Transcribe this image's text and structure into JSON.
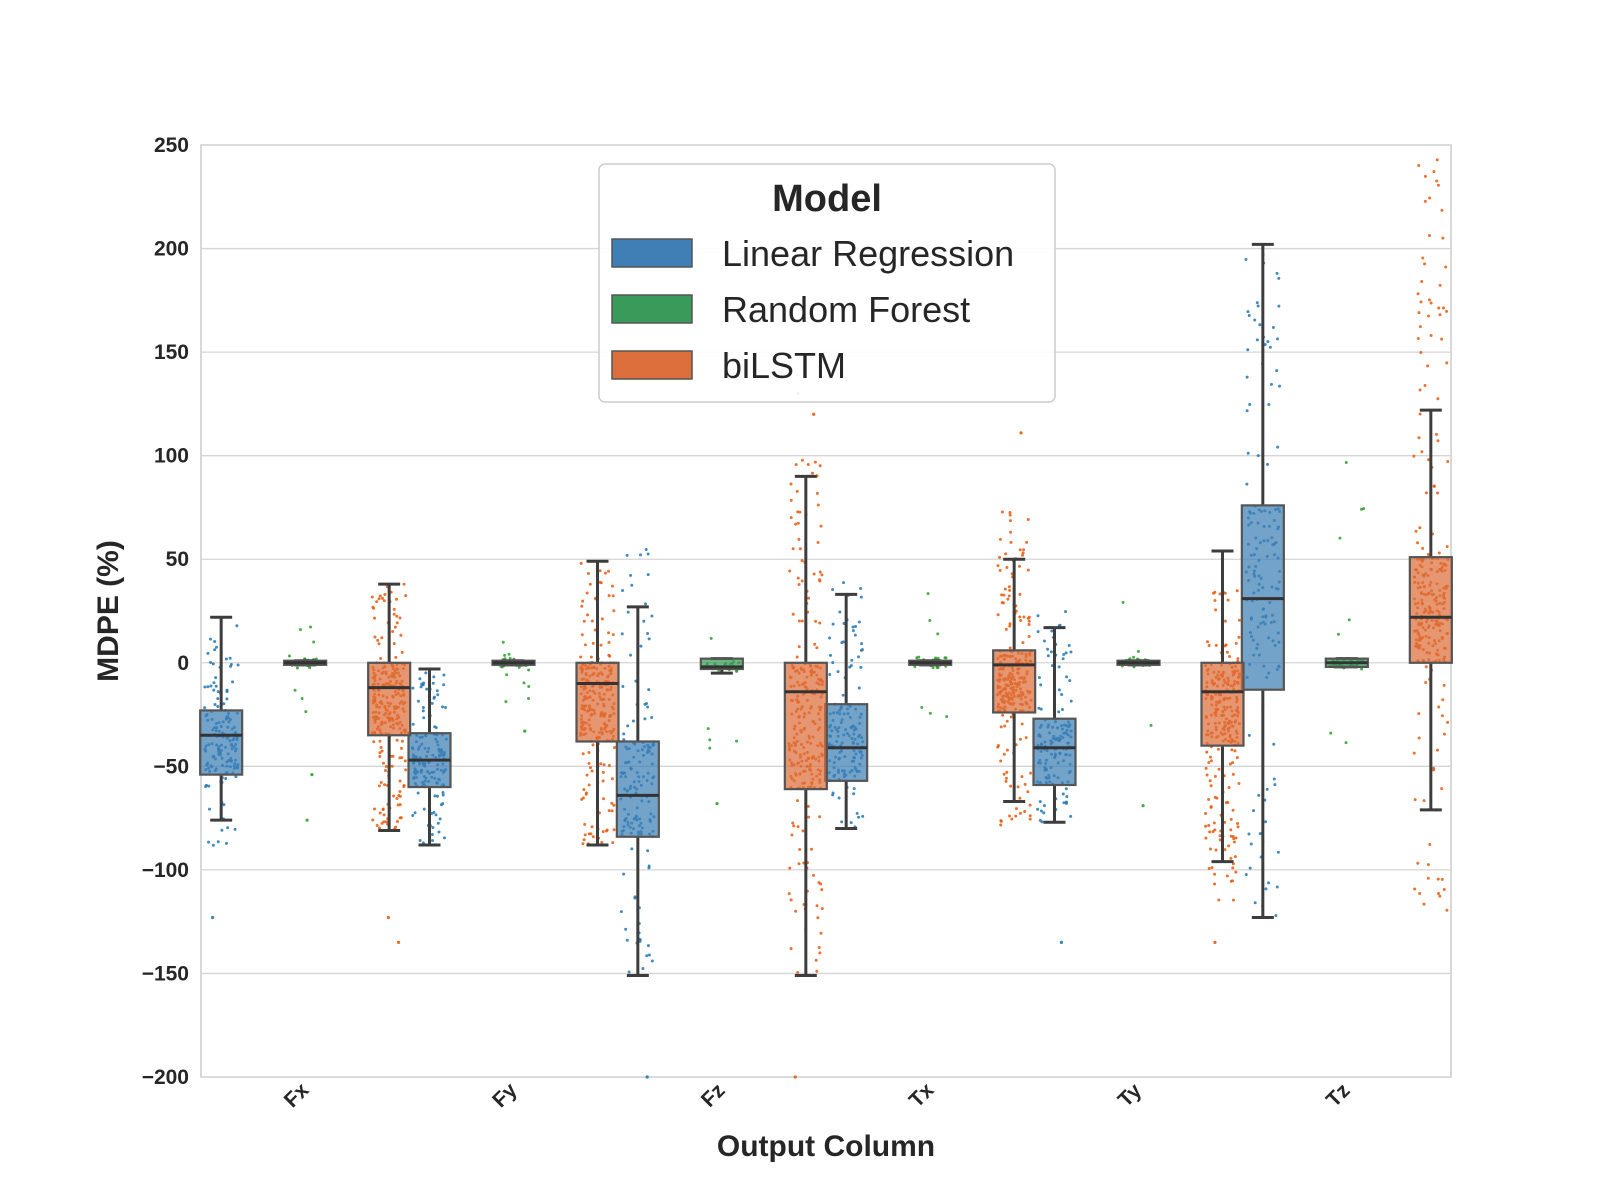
{
  "chart_data": {
    "type": "box",
    "title": "",
    "xlabel": "Output Column",
    "ylabel": "MDPE (%)",
    "ylim": [
      -200,
      250
    ],
    "yticks": [
      -200,
      -150,
      -100,
      -50,
      0,
      50,
      100,
      150,
      200,
      250
    ],
    "ytick_labels": [
      "−200",
      "−150",
      "−100",
      "−50",
      "0",
      "50",
      "100",
      "150",
      "200",
      "250"
    ],
    "categories": [
      "Fx",
      "Fy",
      "Fz",
      "Tx",
      "Ty",
      "Tz"
    ],
    "grid": true,
    "legend": {
      "title": "Model",
      "placement": "top-center"
    },
    "series": [
      {
        "name": "Linear Regression",
        "color": "#3f7fb5",
        "point_color": "#1f77b4",
        "boxes": [
          {
            "whisker_low": -76,
            "q1": -54,
            "median": -35,
            "q3": -23,
            "whisker_high": 22,
            "points_range": [
              -90,
              22
            ],
            "outliers": [
              -123
            ]
          },
          {
            "whisker_low": -88,
            "q1": -60,
            "median": -47,
            "q3": -34,
            "whisker_high": -3,
            "points_range": [
              -88,
              -3
            ],
            "outliers": []
          },
          {
            "whisker_low": -151,
            "q1": -84,
            "median": -64,
            "q3": -38,
            "whisker_high": 27,
            "points_range": [
              -151,
              60
            ],
            "outliers": [
              -200
            ]
          },
          {
            "whisker_low": -80,
            "q1": -57,
            "median": -41,
            "q3": -20,
            "whisker_high": 33,
            "points_range": [
              -80,
              40
            ],
            "outliers": []
          },
          {
            "whisker_low": -77,
            "q1": -59,
            "median": -41,
            "q3": -27,
            "whisker_high": 17,
            "points_range": [
              -77,
              30
            ],
            "outliers": [
              -135
            ]
          },
          {
            "whisker_low": -123,
            "q1": -13,
            "median": 31,
            "q3": 76,
            "whisker_high": 202,
            "points_range": [
              -123,
              202
            ],
            "outliers": []
          }
        ]
      },
      {
        "name": "Random Forest",
        "color": "#3a9a59",
        "point_color": "#2ca02c",
        "boxes": [
          {
            "whisker_low": -1,
            "q1": -1,
            "median": 0,
            "q3": 1,
            "whisker_high": 1,
            "points_range": [
              -25,
              20
            ],
            "outliers": [
              -54,
              -76
            ]
          },
          {
            "whisker_low": -1,
            "q1": -1,
            "median": 0,
            "q3": 1,
            "whisker_high": 1,
            "points_range": [
              -20,
              10
            ],
            "outliers": [
              -33
            ]
          },
          {
            "whisker_low": -5,
            "q1": -3,
            "median": -2,
            "q3": 2,
            "whisker_high": 2,
            "points_range": [
              -60,
              12
            ],
            "outliers": [
              -68
            ]
          },
          {
            "whisker_low": -1,
            "q1": -1,
            "median": 0,
            "q3": 1,
            "whisker_high": 1,
            "points_range": [
              -30,
              40
            ],
            "outliers": []
          },
          {
            "whisker_low": -1,
            "q1": -1,
            "median": 0,
            "q3": 1,
            "whisker_high": 1,
            "points_range": [
              -40,
              35
            ],
            "outliers": [
              -69
            ]
          },
          {
            "whisker_low": -2,
            "q1": -2,
            "median": 0,
            "q3": 2,
            "whisker_high": 2,
            "points_range": [
              -40,
              103
            ],
            "outliers": []
          }
        ]
      },
      {
        "name": "biLSTM",
        "color": "#dc6f3c",
        "point_color": "#e8590c",
        "boxes": [
          {
            "whisker_low": -81,
            "q1": -35,
            "median": -12,
            "q3": 0,
            "whisker_high": 38,
            "points_range": [
              -81,
              38
            ],
            "outliers": [
              -123,
              -135
            ]
          },
          {
            "whisker_low": -88,
            "q1": -38,
            "median": -10,
            "q3": 0,
            "whisker_high": 49,
            "points_range": [
              -88,
              49
            ],
            "outliers": []
          },
          {
            "whisker_low": -151,
            "q1": -61,
            "median": -14,
            "q3": 0,
            "whisker_high": 90,
            "points_range": [
              -151,
              99
            ],
            "outliers": [
              120,
              130,
              -200
            ]
          },
          {
            "whisker_low": -67,
            "q1": -24,
            "median": -1,
            "q3": 6,
            "whisker_high": 50,
            "points_range": [
              -80,
              75
            ],
            "outliers": [
              111
            ]
          },
          {
            "whisker_low": -96,
            "q1": -40,
            "median": -14,
            "q3": 0,
            "whisker_high": 54,
            "points_range": [
              -115,
              37
            ],
            "outliers": [
              -135
            ]
          },
          {
            "whisker_low": -71,
            "q1": 0,
            "median": 22,
            "q3": 51,
            "whisker_high": 122,
            "points_range": [
              -120,
              244
            ],
            "outliers": []
          }
        ]
      }
    ]
  }
}
